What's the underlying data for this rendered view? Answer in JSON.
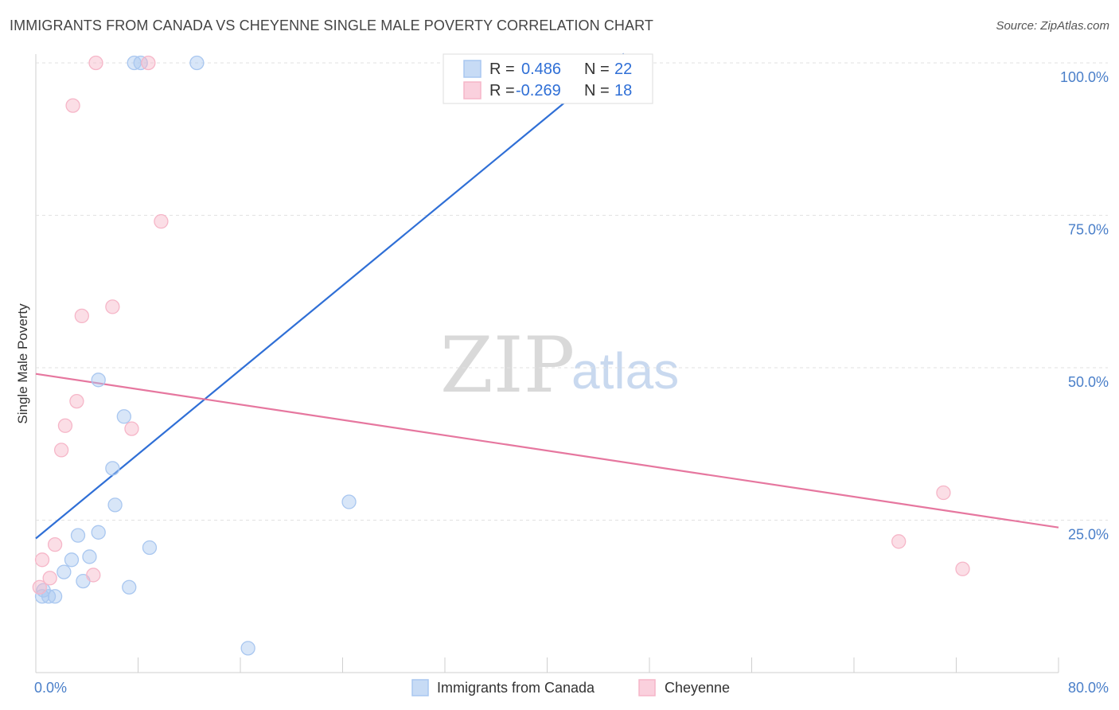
{
  "header": {
    "title": "IMMIGRANTS FROM CANADA VS CHEYENNE SINGLE MALE POVERTY CORRELATION CHART",
    "source": "Source: ZipAtlas.com"
  },
  "watermark": {
    "zip": "ZIP",
    "atlas": "atlas"
  },
  "legend_box": {
    "rows": [
      {
        "r_label": "R =",
        "r_value": "0.486",
        "n_label": "N =",
        "n_value": "22",
        "color": "#a9c7f0"
      },
      {
        "r_label": "R =",
        "r_value": "-0.269",
        "n_label": "N =",
        "n_value": "18",
        "color": "#f6b6c8"
      }
    ]
  },
  "bottom_legend": {
    "series1": "Immigrants from Canada",
    "series2": "Cheyenne"
  },
  "chart_data": {
    "type": "scatter",
    "title": "IMMIGRANTS FROM CANADA VS CHEYENNE SINGLE MALE POVERTY CORRELATION CHART",
    "xlabel": "",
    "ylabel": "Single Male Poverty",
    "xlim": [
      0,
      80
    ],
    "ylim": [
      0,
      100
    ],
    "x_tick_labels": [
      "0.0%",
      "80.0%"
    ],
    "y_ticks": [
      25,
      50,
      75,
      100
    ],
    "y_tick_labels": [
      "25.0%",
      "50.0%",
      "75.0%",
      "100.0%"
    ],
    "grid": true,
    "series": [
      {
        "name": "Immigrants from Canada",
        "color": "#a9c7f0",
        "line_color": "#2f6fd6",
        "points": [
          [
            0.5,
            12.5
          ],
          [
            1.0,
            12.5
          ],
          [
            1.5,
            12.5
          ],
          [
            2.2,
            16.5
          ],
          [
            2.8,
            18.5
          ],
          [
            3.3,
            22.5
          ],
          [
            3.7,
            15.0
          ],
          [
            4.2,
            19.0
          ],
          [
            4.9,
            23.0
          ],
          [
            4.9,
            48.0
          ],
          [
            6.0,
            33.5
          ],
          [
            6.2,
            27.5
          ],
          [
            6.9,
            42.0
          ],
          [
            7.3,
            14.0
          ],
          [
            7.7,
            100.0
          ],
          [
            8.2,
            100.0
          ],
          [
            8.9,
            20.5
          ],
          [
            12.6,
            100.0
          ],
          [
            16.6,
            4.0
          ],
          [
            24.5,
            28.0
          ],
          [
            44.0,
            100.0
          ],
          [
            0.6,
            13.5
          ]
        ],
        "trend": {
          "x": [
            0,
            46
          ],
          "y": [
            22.0,
            101.5
          ]
        }
      },
      {
        "name": "Cheyenne",
        "color": "#f6b6c8",
        "line_color": "#e6779f",
        "points": [
          [
            0.5,
            18.5
          ],
          [
            1.1,
            15.5
          ],
          [
            1.5,
            21.0
          ],
          [
            2.0,
            36.5
          ],
          [
            2.3,
            40.5
          ],
          [
            2.9,
            93.0
          ],
          [
            3.2,
            44.5
          ],
          [
            3.6,
            58.5
          ],
          [
            4.5,
            16.0
          ],
          [
            4.7,
            100.0
          ],
          [
            6.0,
            60.0
          ],
          [
            7.5,
            40.0
          ],
          [
            8.8,
            100.0
          ],
          [
            9.8,
            74.0
          ],
          [
            67.5,
            21.5
          ],
          [
            71.0,
            29.5
          ],
          [
            72.5,
            17.0
          ],
          [
            0.3,
            14.0
          ]
        ],
        "trend": {
          "x": [
            0,
            80
          ],
          "y": [
            49.0,
            23.8
          ]
        }
      }
    ]
  }
}
